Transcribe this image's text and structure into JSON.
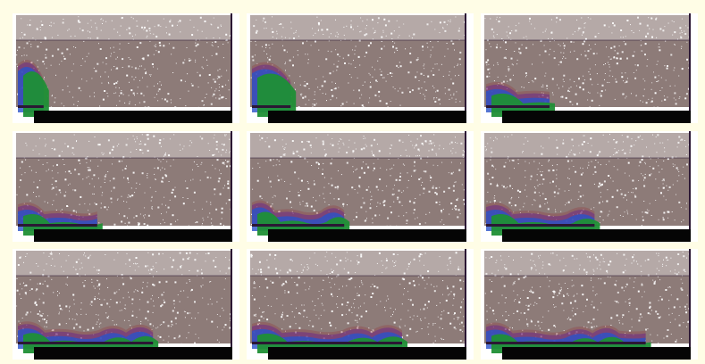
{
  "page": {
    "title": "",
    "background_color": "#fffde6"
  },
  "colors": {
    "speckle_background": "#8d7b78",
    "noise_white": "#ffffff",
    "dark_band": "#2b1734",
    "plume_green": "#1f8f35",
    "plume_blue": "#2b52c8",
    "plume_purple": "#6d2a88",
    "plume_red": "#963d43",
    "caption_background": "#050505"
  },
  "frames": [
    {
      "caption": "",
      "plume": {
        "width_fraction": 0.12,
        "height_fraction": 0.82,
        "peaks": 1
      }
    },
    {
      "caption": "",
      "plume": {
        "width_fraction": 0.18,
        "height_fraction": 0.78,
        "peaks": 1
      }
    },
    {
      "caption": "",
      "plume": {
        "width_fraction": 0.31,
        "height_fraction": 0.42,
        "peaks": 2
      }
    },
    {
      "caption": "",
      "plume": {
        "width_fraction": 0.37,
        "height_fraction": 0.38,
        "peaks": 3
      }
    },
    {
      "caption": "",
      "plume": {
        "width_fraction": 0.43,
        "height_fraction": 0.42,
        "peaks": 4
      }
    },
    {
      "caption": "",
      "plume": {
        "width_fraction": 0.53,
        "height_fraction": 0.38,
        "peaks": 4
      }
    },
    {
      "caption": "",
      "plume": {
        "width_fraction": 0.63,
        "height_fraction": 0.36,
        "peaks": 5
      }
    },
    {
      "caption": "",
      "plume": {
        "width_fraction": 0.7,
        "height_fraction": 0.35,
        "peaks": 5
      }
    },
    {
      "caption": "",
      "plume": {
        "width_fraction": 0.78,
        "height_fraction": 0.34,
        "peaks": 6
      }
    }
  ]
}
